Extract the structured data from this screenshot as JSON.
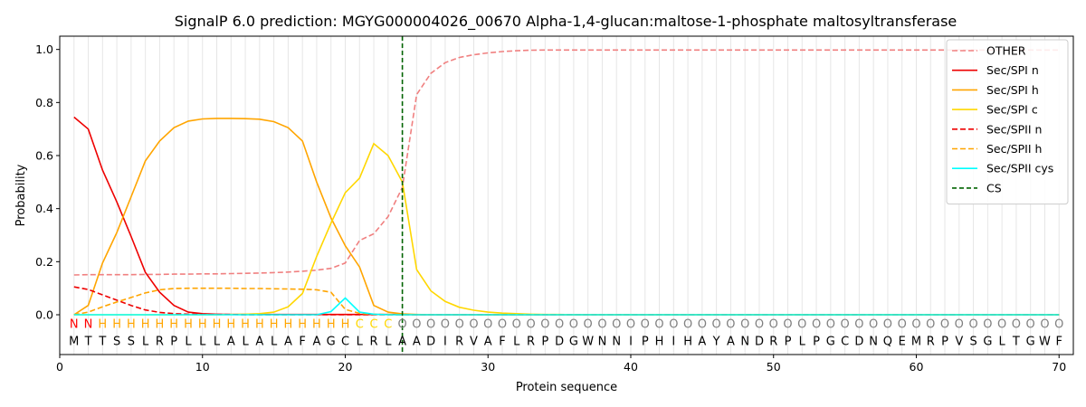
{
  "chart_data": {
    "type": "line",
    "title": "SignalP 6.0 prediction: MGYG000004026_00670 Alpha-1,4-glucan:maltose-1-phosphate maltosyltransferase",
    "xlabel": "Protein sequence",
    "ylabel": "Probability",
    "xlim": [
      0,
      71
    ],
    "ylim": [
      -0.15,
      1.05
    ],
    "xticks": [
      0,
      10,
      20,
      30,
      40,
      50,
      60,
      70
    ],
    "yticks": [
      0.0,
      0.2,
      0.4,
      0.6,
      0.8,
      1.0
    ],
    "ytick_labels": [
      "0.0",
      "0.2",
      "0.4",
      "0.6",
      "0.8",
      "1.0"
    ],
    "grid": "vertical lines at every residue",
    "legend_position": "top-right",
    "cleavage_site": {
      "name": "CS",
      "x": 24,
      "color": "#006400",
      "style": "dashed"
    },
    "sequence": "MTTSSLRPLLLALALAFAGCLRLAADIRVAFLRPDGWNNIPHIHAYANDRPLPGCDNQEMRPVSGLTGWF",
    "labels": "NNHHHHHHHHHHHHHHHHHHCCCOOOOOOOOOOOOOOOOOOOOOOOOOOOOOOOOOOOOOOOOOOOOOOO",
    "label_colors": {
      "N": "#ff0000",
      "H": "#ffa500",
      "C": "#ffd700",
      "O": "#808080"
    },
    "series": [
      {
        "name": "OTHER",
        "color": "#f08080",
        "dash": "6,3",
        "values": [
          0.15,
          0.151,
          0.151,
          0.151,
          0.151,
          0.152,
          0.152,
          0.153,
          0.153,
          0.154,
          0.154,
          0.155,
          0.156,
          0.157,
          0.159,
          0.161,
          0.164,
          0.168,
          0.175,
          0.195,
          0.28,
          0.305,
          0.37,
          0.48,
          0.83,
          0.91,
          0.95,
          0.97,
          0.98,
          0.987,
          0.992,
          0.995,
          0.997,
          0.998,
          0.998,
          0.998,
          0.998,
          0.998,
          0.998,
          0.998,
          0.998,
          0.998,
          0.998,
          0.998,
          0.998,
          0.998,
          0.998,
          0.998,
          0.998,
          0.998,
          0.998,
          0.998,
          0.998,
          0.998,
          0.998,
          0.998,
          0.998,
          0.998,
          0.998,
          0.998,
          0.998,
          0.998,
          0.998,
          0.998,
          0.998,
          0.998,
          0.998,
          0.998,
          0.998,
          0.998
        ]
      },
      {
        "name": "Sec/SPI n",
        "color": "#ee0000",
        "dash": "",
        "values": [
          0.745,
          0.7,
          0.545,
          0.425,
          0.295,
          0.16,
          0.085,
          0.035,
          0.01,
          0.004,
          0.002,
          0.001,
          0.001,
          0.001,
          0.001,
          0.001,
          0.001,
          0.001,
          0.001,
          0.001,
          0.001,
          0.001,
          0.001,
          0.001,
          0,
          0,
          0,
          0,
          0,
          0,
          0,
          0,
          0,
          0,
          0,
          0,
          0,
          0,
          0,
          0,
          0,
          0,
          0,
          0,
          0,
          0,
          0,
          0,
          0,
          0,
          0,
          0,
          0,
          0,
          0,
          0,
          0,
          0,
          0,
          0,
          0,
          0,
          0,
          0,
          0,
          0,
          0,
          0,
          0,
          0
        ]
      },
      {
        "name": "Sec/SPI h",
        "color": "#ffa500",
        "dash": "",
        "values": [
          0.0,
          0.035,
          0.195,
          0.31,
          0.445,
          0.58,
          0.655,
          0.705,
          0.73,
          0.738,
          0.74,
          0.74,
          0.739,
          0.737,
          0.728,
          0.705,
          0.655,
          0.5,
          0.365,
          0.26,
          0.18,
          0.035,
          0.01,
          0.003,
          0.001,
          0,
          0,
          0,
          0,
          0,
          0,
          0,
          0,
          0,
          0,
          0,
          0,
          0,
          0,
          0,
          0,
          0,
          0,
          0,
          0,
          0,
          0,
          0,
          0,
          0,
          0,
          0,
          0,
          0,
          0,
          0,
          0,
          0,
          0,
          0,
          0,
          0,
          0,
          0,
          0,
          0,
          0,
          0,
          0,
          0
        ]
      },
      {
        "name": "Sec/SPI c",
        "color": "#ffd700",
        "dash": "",
        "values": [
          0,
          0,
          0,
          0,
          0,
          0,
          0,
          0,
          0,
          0,
          0,
          0.001,
          0.002,
          0.004,
          0.01,
          0.03,
          0.08,
          0.22,
          0.345,
          0.46,
          0.515,
          0.645,
          0.6,
          0.5,
          0.17,
          0.09,
          0.05,
          0.028,
          0.017,
          0.01,
          0.006,
          0.004,
          0.002,
          0.001,
          0.001,
          0,
          0,
          0,
          0,
          0,
          0,
          0,
          0,
          0,
          0,
          0,
          0,
          0,
          0,
          0,
          0,
          0,
          0,
          0,
          0,
          0,
          0,
          0,
          0,
          0,
          0,
          0,
          0,
          0,
          0,
          0,
          0,
          0,
          0,
          0
        ]
      },
      {
        "name": "Sec/SPII n",
        "color": "#ee0000",
        "dash": "6,3",
        "values": [
          0.105,
          0.095,
          0.075,
          0.055,
          0.035,
          0.018,
          0.009,
          0.004,
          0.002,
          0.001,
          0.001,
          0.001,
          0,
          0,
          0,
          0,
          0,
          0,
          0,
          0,
          0,
          0,
          0,
          0,
          0,
          0,
          0,
          0,
          0,
          0,
          0,
          0,
          0,
          0,
          0,
          0,
          0,
          0,
          0,
          0,
          0,
          0,
          0,
          0,
          0,
          0,
          0,
          0,
          0,
          0,
          0,
          0,
          0,
          0,
          0,
          0,
          0,
          0,
          0,
          0,
          0,
          0,
          0,
          0,
          0,
          0,
          0,
          0,
          0,
          0
        ]
      },
      {
        "name": "Sec/SPII h",
        "color": "#ffa500",
        "dash": "6,3",
        "values": [
          0.0,
          0.01,
          0.03,
          0.048,
          0.065,
          0.082,
          0.094,
          0.099,
          0.1,
          0.1,
          0.1,
          0.1,
          0.099,
          0.099,
          0.098,
          0.097,
          0.096,
          0.094,
          0.085,
          0.02,
          0.005,
          0.002,
          0.001,
          0,
          0,
          0,
          0,
          0,
          0,
          0,
          0,
          0,
          0,
          0,
          0,
          0,
          0,
          0,
          0,
          0,
          0,
          0,
          0,
          0,
          0,
          0,
          0,
          0,
          0,
          0,
          0,
          0,
          0,
          0,
          0,
          0,
          0,
          0,
          0,
          0,
          0,
          0,
          0,
          0,
          0,
          0,
          0,
          0,
          0,
          0
        ]
      },
      {
        "name": "Sec/SPII cys",
        "color": "#00ffff",
        "dash": "",
        "values": [
          0,
          0,
          0,
          0,
          0,
          0,
          0,
          0,
          0,
          0,
          0,
          0,
          0,
          0,
          0,
          0,
          0,
          0,
          0.012,
          0.063,
          0.01,
          0.002,
          0,
          0,
          0,
          0,
          0,
          0,
          0,
          0,
          0,
          0,
          0,
          0,
          0,
          0,
          0,
          0,
          0,
          0,
          0,
          0,
          0,
          0,
          0,
          0,
          0,
          0,
          0,
          0,
          0,
          0,
          0,
          0,
          0,
          0,
          0,
          0,
          0,
          0,
          0,
          0,
          0,
          0,
          0,
          0,
          0,
          0,
          0,
          0
        ]
      }
    ]
  }
}
